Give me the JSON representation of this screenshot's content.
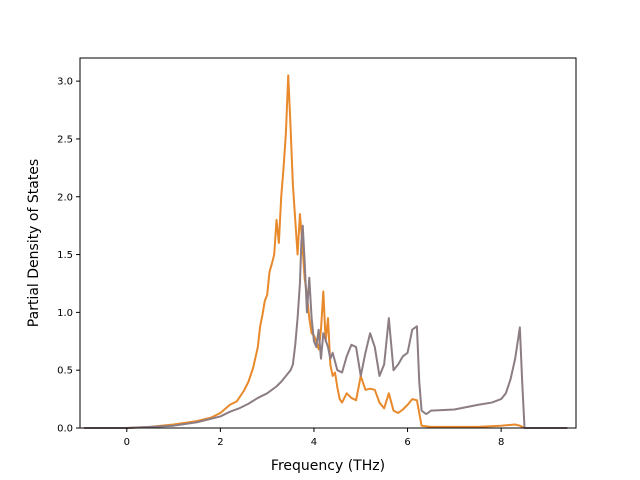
{
  "chart_data": {
    "type": "line",
    "title": "",
    "xlabel": "Frequency (THz)",
    "ylabel": "Partial Density of States",
    "xlim": [
      -1.0,
      9.6
    ],
    "ylim": [
      0.0,
      3.2
    ],
    "xticks": [
      0,
      2,
      4,
      6,
      8
    ],
    "yticks": [
      0.0,
      0.5,
      1.0,
      1.5,
      2.0,
      2.5,
      3.0
    ],
    "xtick_labels": [
      "0",
      "2",
      "4",
      "6",
      "8"
    ],
    "ytick_labels": [
      "0.0",
      "0.5",
      "1.0",
      "1.5",
      "2.0",
      "2.5",
      "3.0"
    ],
    "grid": false,
    "legend": false,
    "series": [
      {
        "color": "#e8892b",
        "points": [
          [
            -0.9,
            0.0
          ],
          [
            0.0,
            0.0
          ],
          [
            0.5,
            0.01
          ],
          [
            1.0,
            0.03
          ],
          [
            1.5,
            0.06
          ],
          [
            1.8,
            0.09
          ],
          [
            2.0,
            0.13
          ],
          [
            2.2,
            0.2
          ],
          [
            2.35,
            0.23
          ],
          [
            2.5,
            0.32
          ],
          [
            2.6,
            0.4
          ],
          [
            2.7,
            0.52
          ],
          [
            2.8,
            0.7
          ],
          [
            2.85,
            0.88
          ],
          [
            2.9,
            0.98
          ],
          [
            2.95,
            1.1
          ],
          [
            3.0,
            1.15
          ],
          [
            3.05,
            1.35
          ],
          [
            3.1,
            1.42
          ],
          [
            3.15,
            1.5
          ],
          [
            3.2,
            1.8
          ],
          [
            3.25,
            1.6
          ],
          [
            3.3,
            2.0
          ],
          [
            3.35,
            2.25
          ],
          [
            3.4,
            2.55
          ],
          [
            3.45,
            3.05
          ],
          [
            3.5,
            2.6
          ],
          [
            3.55,
            2.1
          ],
          [
            3.6,
            1.8
          ],
          [
            3.65,
            1.5
          ],
          [
            3.7,
            1.85
          ],
          [
            3.75,
            1.6
          ],
          [
            3.8,
            1.3
          ],
          [
            3.85,
            1.15
          ],
          [
            3.9,
            0.95
          ],
          [
            3.95,
            0.82
          ],
          [
            4.0,
            0.8
          ],
          [
            4.05,
            0.75
          ],
          [
            4.1,
            0.68
          ],
          [
            4.15,
            0.85
          ],
          [
            4.2,
            1.18
          ],
          [
            4.25,
            0.75
          ],
          [
            4.3,
            0.95
          ],
          [
            4.35,
            0.55
          ],
          [
            4.4,
            0.45
          ],
          [
            4.45,
            0.48
          ],
          [
            4.5,
            0.35
          ],
          [
            4.55,
            0.25
          ],
          [
            4.6,
            0.22
          ],
          [
            4.7,
            0.3
          ],
          [
            4.8,
            0.26
          ],
          [
            4.9,
            0.24
          ],
          [
            5.0,
            0.45
          ],
          [
            5.1,
            0.33
          ],
          [
            5.2,
            0.34
          ],
          [
            5.3,
            0.33
          ],
          [
            5.4,
            0.22
          ],
          [
            5.5,
            0.17
          ],
          [
            5.6,
            0.3
          ],
          [
            5.7,
            0.15
          ],
          [
            5.8,
            0.13
          ],
          [
            5.9,
            0.16
          ],
          [
            6.0,
            0.2
          ],
          [
            6.1,
            0.25
          ],
          [
            6.2,
            0.24
          ],
          [
            6.3,
            0.02
          ],
          [
            6.5,
            0.01
          ],
          [
            7.5,
            0.01
          ],
          [
            8.0,
            0.02
          ],
          [
            8.3,
            0.03
          ],
          [
            8.4,
            0.02
          ],
          [
            8.5,
            0.0
          ],
          [
            9.4,
            0.0
          ]
        ]
      },
      {
        "color": "#8c7d84",
        "points": [
          [
            -0.9,
            0.0
          ],
          [
            0.0,
            0.0
          ],
          [
            0.5,
            0.01
          ],
          [
            1.0,
            0.02
          ],
          [
            1.5,
            0.05
          ],
          [
            2.0,
            0.1
          ],
          [
            2.2,
            0.14
          ],
          [
            2.4,
            0.17
          ],
          [
            2.6,
            0.21
          ],
          [
            2.8,
            0.26
          ],
          [
            3.0,
            0.3
          ],
          [
            3.2,
            0.36
          ],
          [
            3.3,
            0.4
          ],
          [
            3.4,
            0.45
          ],
          [
            3.5,
            0.5
          ],
          [
            3.55,
            0.55
          ],
          [
            3.6,
            0.72
          ],
          [
            3.65,
            0.95
          ],
          [
            3.7,
            1.25
          ],
          [
            3.73,
            1.6
          ],
          [
            3.76,
            1.75
          ],
          [
            3.8,
            1.45
          ],
          [
            3.85,
            1.0
          ],
          [
            3.9,
            1.3
          ],
          [
            3.95,
            0.95
          ],
          [
            4.0,
            0.75
          ],
          [
            4.05,
            0.7
          ],
          [
            4.1,
            0.85
          ],
          [
            4.15,
            0.6
          ],
          [
            4.2,
            0.82
          ],
          [
            4.3,
            0.7
          ],
          [
            4.35,
            0.6
          ],
          [
            4.4,
            0.65
          ],
          [
            4.5,
            0.5
          ],
          [
            4.6,
            0.48
          ],
          [
            4.7,
            0.62
          ],
          [
            4.8,
            0.72
          ],
          [
            4.9,
            0.7
          ],
          [
            5.0,
            0.45
          ],
          [
            5.1,
            0.65
          ],
          [
            5.2,
            0.82
          ],
          [
            5.3,
            0.7
          ],
          [
            5.4,
            0.45
          ],
          [
            5.5,
            0.55
          ],
          [
            5.6,
            0.95
          ],
          [
            5.7,
            0.5
          ],
          [
            5.8,
            0.55
          ],
          [
            5.9,
            0.62
          ],
          [
            6.0,
            0.65
          ],
          [
            6.1,
            0.85
          ],
          [
            6.2,
            0.88
          ],
          [
            6.25,
            0.4
          ],
          [
            6.3,
            0.15
          ],
          [
            6.4,
            0.12
          ],
          [
            6.5,
            0.15
          ],
          [
            7.0,
            0.16
          ],
          [
            7.5,
            0.2
          ],
          [
            7.8,
            0.22
          ],
          [
            8.0,
            0.25
          ],
          [
            8.1,
            0.3
          ],
          [
            8.2,
            0.42
          ],
          [
            8.3,
            0.6
          ],
          [
            8.4,
            0.87
          ],
          [
            8.45,
            0.4
          ],
          [
            8.5,
            0.0
          ],
          [
            9.4,
            0.0
          ]
        ]
      }
    ]
  }
}
